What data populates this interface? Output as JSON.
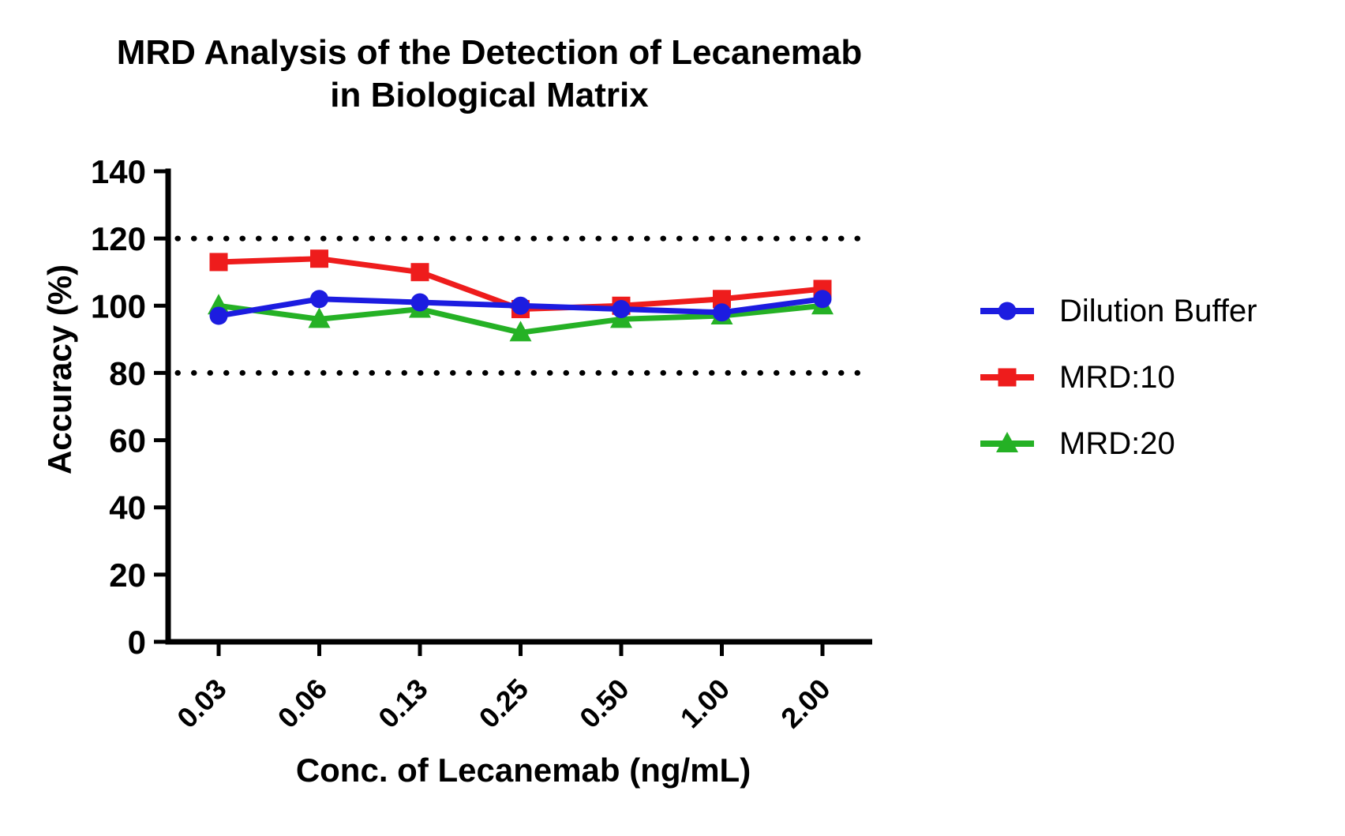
{
  "figure": {
    "background": "#ffffff",
    "text_color": "#000000"
  },
  "title": {
    "line1": "MRD Analysis of the Detection of Lecanemab",
    "line2": "in Biological Matrix"
  },
  "axes": {
    "y_label": "Accuracy (%)",
    "x_label": "Conc. of Lecanemab (ng/mL)"
  },
  "chart_data": {
    "type": "line",
    "title": "MRD Analysis of the Detection of Lecanemab in Biological Matrix",
    "xlabel": "Conc. of Lecanemab (ng/mL)",
    "ylabel": "Accuracy (%)",
    "categories": [
      "0.03",
      "0.06",
      "0.13",
      "0.25",
      "0.50",
      "1.00",
      "2.00"
    ],
    "y_ticks": [
      0,
      20,
      40,
      60,
      80,
      100,
      120,
      140
    ],
    "ylim": [
      0,
      140
    ],
    "grid": false,
    "legend_position": "right",
    "reference_lines": [
      {
        "y": 120,
        "style": "dotted",
        "color": "#000000"
      },
      {
        "y": 80,
        "style": "dotted",
        "color": "#000000"
      }
    ],
    "series": [
      {
        "name": "Dilution Buffer",
        "marker": "circle",
        "color": "#1c1ce0",
        "values": [
          97,
          102,
          101,
          100,
          99,
          98,
          102
        ]
      },
      {
        "name": "MRD:10",
        "marker": "square",
        "color": "#ee1c1c",
        "values": [
          113,
          114,
          110,
          99,
          100,
          102,
          105
        ]
      },
      {
        "name": "MRD:20",
        "marker": "triangle",
        "color": "#25b125",
        "values": [
          100,
          96,
          99,
          92,
          96,
          97,
          100
        ]
      }
    ]
  }
}
